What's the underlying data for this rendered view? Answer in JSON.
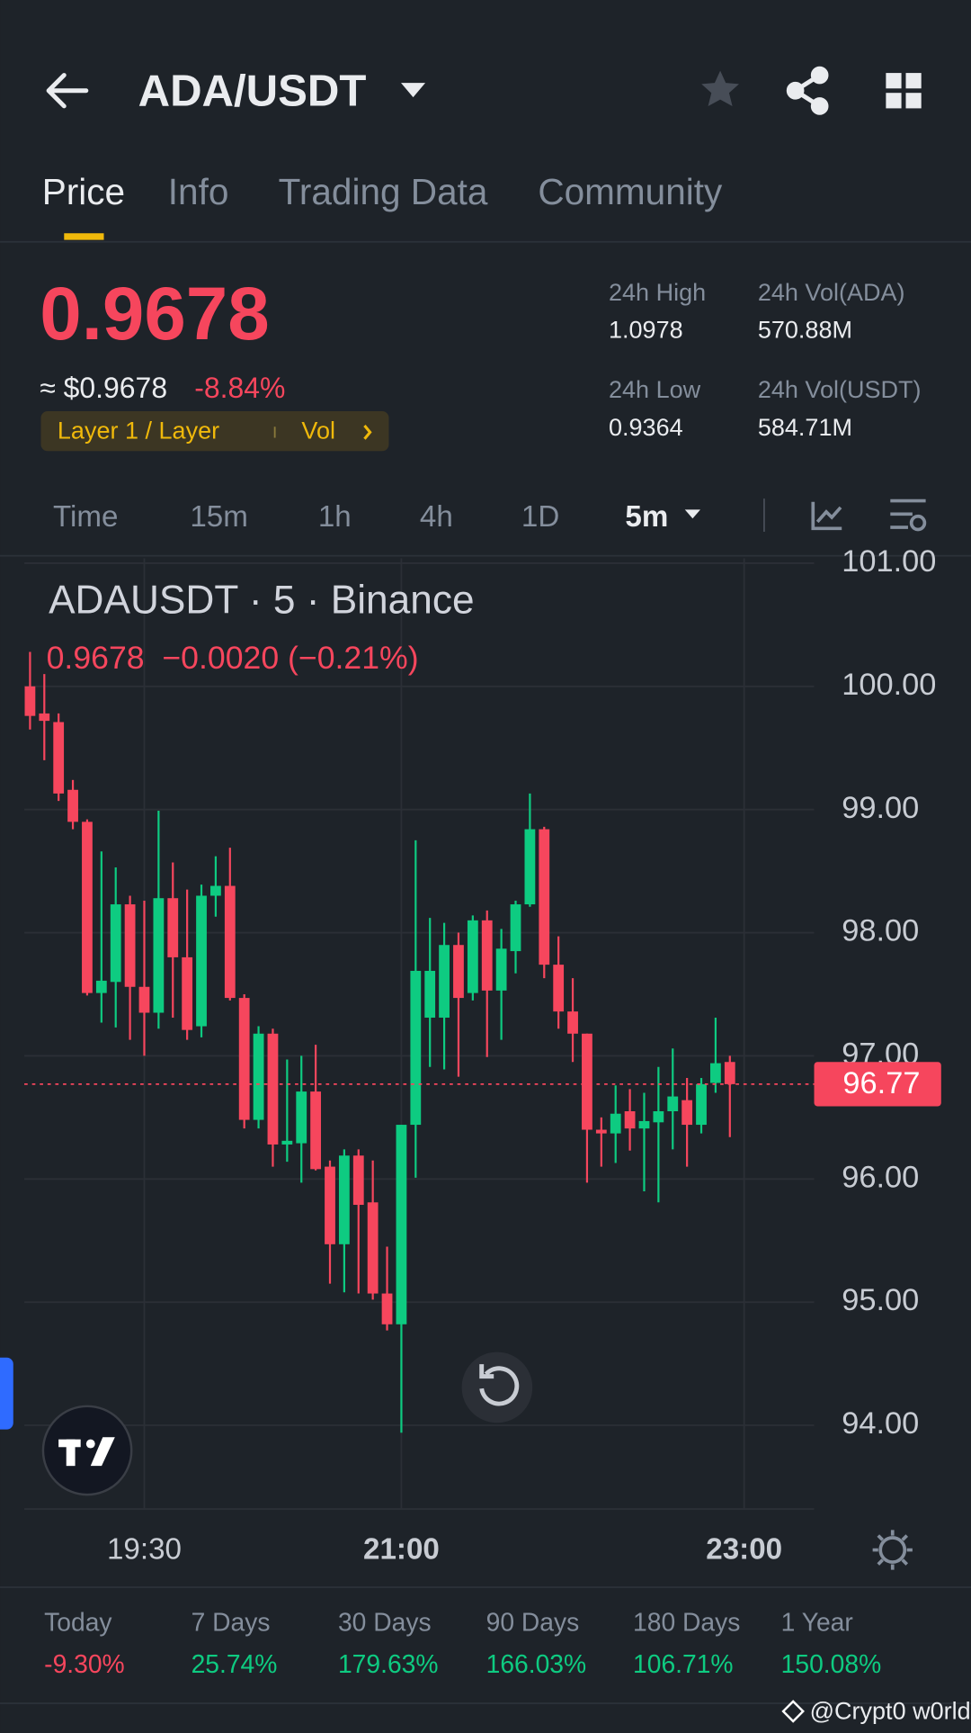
{
  "header": {
    "title": "ADA/USDT"
  },
  "tabs": [
    "Price",
    "Info",
    "Trading Data",
    "Community"
  ],
  "price": {
    "last": "0.9678",
    "usd": "≈ $0.9678",
    "change": "-8.84%",
    "tag": "Layer 1 / Layer",
    "vol": "Vol"
  },
  "stats": [
    {
      "label": "24h High",
      "value": "1.0978"
    },
    {
      "label": "24h Vol(ADA)",
      "value": "570.88M"
    },
    {
      "label": "24h Low",
      "value": "0.9364"
    },
    {
      "label": "24h Vol(USDT)",
      "value": "584.71M"
    }
  ],
  "intervals": [
    "Time",
    "15m",
    "1h",
    "4h",
    "1D",
    "5m"
  ],
  "chart_data": {
    "type": "candlestick",
    "title": "ADAUSDT · 5 · Binance",
    "legend": "0.9678  −0.0020 (−0.21%)",
    "open": [
      100.0,
      99.78,
      99.71,
      99.16,
      98.9,
      97.51,
      97.6,
      98.23,
      97.56,
      97.35,
      98.28,
      97.8,
      97.24,
      98.3,
      98.38,
      97.47,
      96.48,
      97.18,
      96.28,
      96.29,
      96.71,
      96.1,
      95.47,
      96.19,
      95.81,
      95.07,
      94.82,
      96.44,
      97.31,
      97.31,
      97.9,
      97.51,
      98.1,
      97.53,
      97.85,
      98.23,
      98.84,
      97.74,
      97.36,
      97.18,
      96.4,
      96.37,
      96.55,
      96.41,
      96.46,
      96.55,
      96.64,
      96.44,
      96.78,
      96.95
    ],
    "high": [
      100.28,
      100.1,
      99.78,
      99.24,
      98.92,
      98.66,
      98.53,
      98.3,
      98.26,
      98.99,
      98.57,
      98.35,
      98.39,
      98.62,
      98.69,
      97.5,
      97.24,
      97.22,
      96.97,
      97.0,
      97.09,
      96.15,
      96.24,
      96.24,
      96.15,
      95.45,
      96.44,
      98.75,
      98.12,
      98.08,
      98.0,
      98.14,
      98.18,
      98.03,
      98.26,
      99.13,
      98.86,
      97.97,
      97.63,
      97.18,
      96.5,
      96.76,
      96.73,
      96.7,
      96.91,
      97.06,
      96.82,
      96.82,
      97.31,
      97.0
    ],
    "low": [
      99.65,
      99.4,
      99.07,
      98.84,
      97.49,
      97.27,
      97.23,
      97.13,
      97.0,
      97.22,
      97.31,
      97.13,
      97.15,
      98.13,
      97.45,
      96.41,
      96.41,
      96.1,
      96.14,
      95.97,
      96.07,
      95.15,
      95.08,
      95.07,
      95.02,
      94.77,
      93.94,
      96.01,
      96.91,
      96.89,
      96.83,
      97.45,
      96.99,
      97.13,
      97.67,
      98.21,
      97.63,
      97.22,
      96.95,
      95.97,
      96.1,
      96.13,
      96.23,
      95.9,
      95.81,
      96.24,
      96.1,
      96.37,
      96.7,
      96.34
    ],
    "close": [
      99.76,
      99.72,
      99.13,
      98.9,
      97.51,
      97.61,
      98.23,
      97.56,
      97.35,
      98.28,
      97.8,
      97.21,
      98.3,
      98.38,
      97.47,
      96.48,
      97.18,
      96.28,
      96.31,
      96.71,
      96.08,
      95.47,
      96.19,
      95.79,
      95.07,
      94.82,
      96.44,
      97.69,
      97.69,
      97.9,
      97.47,
      98.1,
      97.53,
      97.87,
      98.23,
      98.84,
      97.74,
      97.36,
      97.18,
      96.4,
      96.37,
      96.53,
      96.41,
      96.47,
      96.55,
      96.67,
      96.44,
      96.77,
      96.94,
      96.77
    ],
    "up_color": "#0ecb81",
    "down_color": "#f6465d",
    "grid": true,
    "ylim": [
      93.32,
      101.04
    ],
    "yticks": [
      {
        "value": 94,
        "label": "94.00"
      },
      {
        "value": 95,
        "label": "95.00"
      },
      {
        "value": 96,
        "label": "96.00"
      },
      {
        "value": 97,
        "label": "97.00"
      },
      {
        "value": 98,
        "label": "98.00"
      },
      {
        "value": 99,
        "label": "99.00"
      },
      {
        "value": 100,
        "label": "100.00"
      },
      {
        "value": 101,
        "label": "101.00"
      }
    ],
    "xlim": [
      -0.4,
      54.9
    ],
    "xticks": [
      {
        "value": 8,
        "label": "19:30"
      },
      {
        "value": 26,
        "label": "21:00"
      },
      {
        "value": 50,
        "label": "23:00"
      }
    ],
    "last_price": 96.77
  },
  "performance": [
    {
      "label": "Today",
      "value": "-9.30%"
    },
    {
      "label": "7 Days",
      "value": "25.74%"
    },
    {
      "label": "30 Days",
      "value": "179.63%"
    },
    {
      "label": "90 Days",
      "value": "166.03%"
    },
    {
      "label": "180 Days",
      "value": "106.71%"
    },
    {
      "label": "1 Year",
      "value": "150.08%"
    }
  ],
  "watermark": "@Crypt0 w0rld"
}
